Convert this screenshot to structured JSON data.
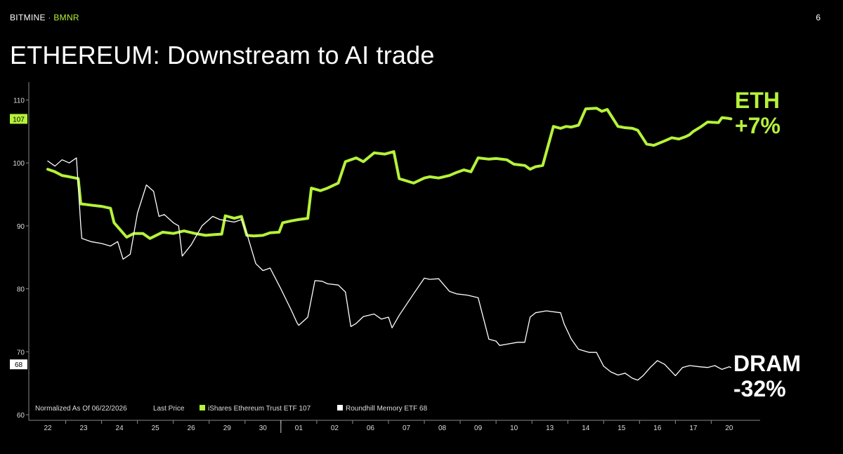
{
  "header": {
    "brand": "BITMINE",
    "separator": "·",
    "ticker": "BMNR",
    "page_number": "6",
    "title": "ETHEREUM: Downstream to AI trade"
  },
  "annotations": {
    "eth_name": "ETH",
    "eth_change": "+7%",
    "dram_name": "DRAM",
    "dram_change": "-32%"
  },
  "legend": {
    "prefix": "Normalized As Of 06/22/2026",
    "last_price": "Last Price",
    "items": [
      {
        "label": "iShares Ethereum Trust ETF 107",
        "color": "#b5f23a"
      },
      {
        "label": "Roundhill Memory ETF 68",
        "color": "#ffffff"
      }
    ]
  },
  "colors": {
    "eth": "#b5f23a",
    "dram": "#ffffff",
    "axis": "#8a8a8a",
    "background": "#000000"
  },
  "chart_data": {
    "type": "line",
    "title": "",
    "xlabel": "",
    "ylabel": "",
    "ylim": [
      60,
      112
    ],
    "y_ticks": [
      60,
      70,
      80,
      90,
      100,
      110
    ],
    "x_tick_labels": [
      "22",
      "23",
      "24",
      "25",
      "26",
      "29",
      "30",
      "01",
      "02",
      "06",
      "07",
      "08",
      "09",
      "10",
      "13",
      "14",
      "15",
      "16",
      "17",
      "20"
    ],
    "last_values": {
      "eth": "107",
      "dram": "68"
    },
    "grid": false,
    "legend_position": "bottom-left",
    "series": [
      {
        "name": "iShares Ethereum Trust ETF",
        "color": "#b5f23a",
        "x": [
          0,
          0.2,
          0.4,
          0.6,
          0.85,
          0.92,
          1.2,
          1.5,
          1.75,
          1.85,
          2.2,
          2.4,
          2.65,
          2.85,
          3.2,
          3.5,
          3.8,
          4.1,
          4.4,
          4.6,
          4.85,
          4.95,
          5.2,
          5.4,
          5.55,
          5.75,
          6,
          6.2,
          6.45,
          6.55,
          6.8,
          7,
          7.25,
          7.35,
          7.6,
          7.8,
          8.1,
          8.3,
          8.6,
          8.8,
          9.1,
          9.4,
          9.65,
          9.8,
          10.2,
          10.5,
          10.65,
          10.9,
          11.2,
          11.4,
          11.6,
          11.8,
          12,
          12.3,
          12.5,
          12.8,
          13,
          13.3,
          13.45,
          13.6,
          13.8,
          14.1,
          14.3,
          14.45,
          14.6,
          14.8,
          15,
          15.3,
          15.45,
          15.6,
          15.9,
          16.1,
          16.3,
          16.45,
          16.7,
          16.9,
          17.2,
          17.4,
          17.6,
          17.8,
          17.9,
          18,
          18.2,
          18.4,
          18.7,
          18.8,
          18.95,
          19.05
        ],
        "values": [
          99,
          98.6,
          98,
          97.8,
          97.5,
          93.5,
          93.3,
          93.1,
          92.8,
          90.5,
          88.2,
          88.8,
          88.8,
          88,
          89,
          88.8,
          89.2,
          88.8,
          88.5,
          88.6,
          88.7,
          91.6,
          91.2,
          91.5,
          88.5,
          88.4,
          88.5,
          88.9,
          89,
          90.5,
          90.8,
          91,
          91.2,
          96,
          95.6,
          96,
          96.8,
          100.2,
          100.8,
          100.2,
          101.6,
          101.4,
          101.8,
          97.5,
          96.8,
          97.6,
          97.8,
          97.6,
          98,
          98.5,
          98.9,
          98.6,
          100.8,
          100.6,
          100.7,
          100.5,
          99.8,
          99.6,
          99,
          99.4,
          99.6,
          105.8,
          105.5,
          105.8,
          105.7,
          106,
          108.6,
          108.7,
          108.2,
          108.5,
          105.8,
          105.6,
          105.5,
          105.2,
          103,
          102.8,
          103.5,
          104,
          103.8,
          104.2,
          104.5,
          105,
          105.7,
          106.5,
          106.4,
          107.2,
          107.1,
          107
        ]
      },
      {
        "name": "Roundhill Memory ETF",
        "color": "#ffffff",
        "x": [
          0,
          0.2,
          0.4,
          0.6,
          0.8,
          0.92,
          0.95,
          1.2,
          1.5,
          1.75,
          1.95,
          2.1,
          2.3,
          2.5,
          2.75,
          2.95,
          3.1,
          3.25,
          3.5,
          3.65,
          3.75,
          4,
          4.3,
          4.5,
          4.6,
          4.8,
          5,
          5.2,
          5.4,
          5.55,
          5.8,
          6,
          6.2,
          6.5,
          6.8,
          6.95,
          7,
          7.25,
          7.45,
          7.65,
          7.8,
          8.1,
          8.3,
          8.45,
          8.6,
          8.8,
          9.1,
          9.3,
          9.5,
          9.6,
          9.8,
          10.2,
          10.5,
          10.65,
          10.9,
          11.2,
          11.4,
          11.7,
          12,
          12.3,
          12.5,
          12.6,
          12.8,
          13.1,
          13.3,
          13.45,
          13.6,
          13.9,
          14.3,
          14.4,
          14.6,
          14.8,
          15.1,
          15.3,
          15.5,
          15.7,
          15.9,
          16.1,
          16.3,
          16.45,
          16.6,
          16.8,
          17,
          17.2,
          17.5,
          17.7,
          17.9,
          18.2,
          18.4,
          18.6,
          18.8,
          19,
          19.05
        ],
        "values": [
          100.3,
          99.5,
          100.5,
          100,
          100.8,
          90,
          88,
          87.5,
          87.2,
          86.8,
          87.5,
          84.7,
          85.5,
          92,
          96.5,
          95.5,
          91.5,
          91.8,
          90.5,
          90,
          85.2,
          87,
          90,
          91,
          91.5,
          91,
          90.8,
          90.6,
          91,
          88.8,
          84,
          82.9,
          83.3,
          80,
          76.5,
          74.6,
          74.2,
          75.5,
          81.3,
          81.2,
          80.8,
          80.6,
          79.5,
          74,
          74.5,
          75.6,
          76,
          75.2,
          75.5,
          73.8,
          75.8,
          79.2,
          81.7,
          81.5,
          81.6,
          79.6,
          79.2,
          79,
          78.6,
          72,
          71.7,
          71,
          71.2,
          71.5,
          71.5,
          75.5,
          76.2,
          76.5,
          76.2,
          74.4,
          72,
          70.4,
          69.9,
          69.9,
          67.7,
          66.8,
          66.3,
          66.6,
          65.8,
          65.5,
          66.2,
          67.5,
          68.6,
          68,
          66.2,
          67.5,
          67.8,
          67.6,
          67.5,
          67.8,
          67.2,
          67.6,
          67.5
        ]
      }
    ]
  }
}
